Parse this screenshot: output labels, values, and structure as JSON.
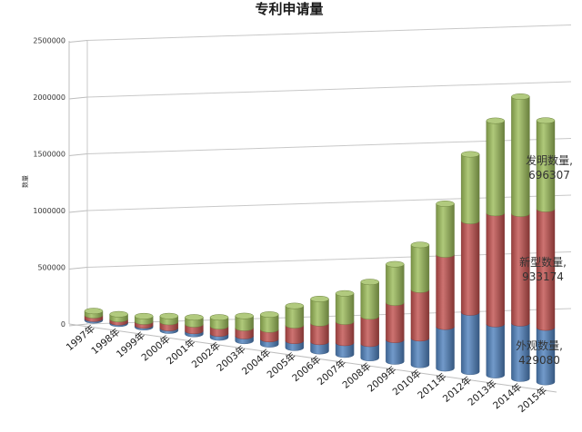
{
  "chart_data": {
    "type": "bar",
    "stacked": true,
    "style": "3d-cylinder",
    "title": "专利申请量",
    "xlabel": "",
    "ylabel": "数量",
    "ylim": [
      0,
      2500000
    ],
    "yticks": [
      "2500000",
      "2000000",
      "1500000",
      "1000000",
      "500000",
      "0"
    ],
    "grid": true,
    "categories": [
      "1997年",
      "1998年",
      "1999年",
      "2000年",
      "2001年",
      "2002年",
      "2003年",
      "2004年",
      "2005年",
      "2006年",
      "2007年",
      "2008年",
      "2009年",
      "2010年",
      "2011年",
      "2012年",
      "2013年",
      "2014年",
      "2015年"
    ],
    "series": [
      {
        "name": "外观数量",
        "color": "#4f81bd",
        "values": [
          15000,
          14000,
          16000,
          24000,
          28000,
          35000,
          43000,
          46000,
          60000,
          80000,
          100000,
          120000,
          180000,
          220000,
          340000,
          480000,
          410000,
          440000,
          429080
        ]
      },
      {
        "name": "新型数量",
        "color": "#c0504d",
        "values": [
          33000,
          30000,
          36000,
          55000,
          60000,
          65000,
          72000,
          84000,
          135000,
          160000,
          180000,
          230000,
          310000,
          400000,
          590000,
          740000,
          890000,
          870000,
          933174
        ]
      },
      {
        "name": "发明数量",
        "color": "#9bbb59",
        "values": [
          40000,
          45000,
          50000,
          54000,
          63000,
          80000,
          106000,
          131000,
          168000,
          208000,
          240000,
          290000,
          320000,
          370000,
          415000,
          540000,
          740000,
          930000,
          696307
        ]
      }
    ],
    "annotations": [
      {
        "series": "发明数量",
        "label": "发明数量,",
        "value": "696307"
      },
      {
        "series": "新型数量",
        "label": "新型数量,",
        "value": "933174"
      },
      {
        "series": "外观数量",
        "label": "外观数量,",
        "value": "429080"
      }
    ]
  }
}
